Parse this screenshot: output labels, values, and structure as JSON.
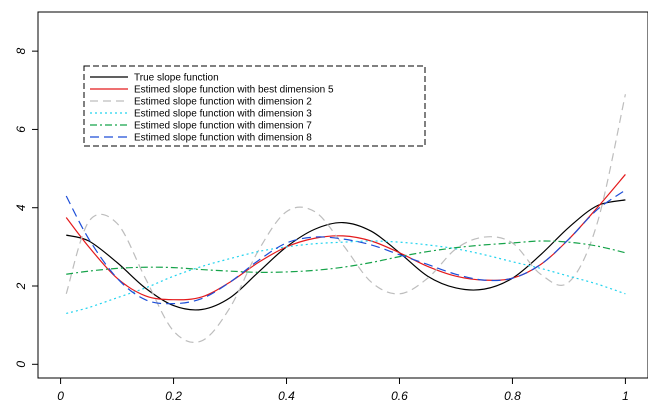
{
  "chart_data": {
    "type": "line",
    "title": "",
    "xlabel": "",
    "ylabel": "",
    "xlim": [
      -0.04,
      1.04
    ],
    "ylim": [
      -0.35,
      9.0
    ],
    "x_ticks": [
      0,
      0.2,
      0.4,
      0.6,
      0.8,
      1
    ],
    "x_tick_labels": [
      "0",
      "0.2",
      "0.4",
      "0.6",
      "0.8",
      "1"
    ],
    "y_ticks": [
      0,
      2,
      4,
      6,
      8
    ],
    "y_tick_labels": [
      "0",
      "2",
      "4",
      "6",
      "8"
    ],
    "grid": false,
    "legend_position": "top-left",
    "x": [
      0.01,
      0.05,
      0.1,
      0.15,
      0.2,
      0.25,
      0.3,
      0.35,
      0.4,
      0.45,
      0.5,
      0.55,
      0.6,
      0.65,
      0.7,
      0.75,
      0.8,
      0.85,
      0.9,
      0.95,
      1.0
    ],
    "series": [
      {
        "name": "True slope function",
        "color": "#000000",
        "dash": "solid",
        "values": [
          3.3,
          3.15,
          2.6,
          1.95,
          1.5,
          1.4,
          1.7,
          2.35,
          3.0,
          3.45,
          3.62,
          3.4,
          2.85,
          2.25,
          1.95,
          1.92,
          2.2,
          2.8,
          3.5,
          4.05,
          4.2
        ]
      },
      {
        "name": "Estimed slope function with best dimension 5",
        "color": "#e41a1c",
        "dash": "solid",
        "values": [
          3.75,
          3.0,
          2.2,
          1.75,
          1.65,
          1.72,
          2.1,
          2.6,
          3.0,
          3.22,
          3.28,
          3.15,
          2.85,
          2.5,
          2.25,
          2.15,
          2.2,
          2.55,
          3.2,
          4.0,
          4.85
        ]
      },
      {
        "name": "Estimed slope function with  dimension 2",
        "color": "#bdbdbd",
        "dash": "8,5",
        "values": [
          1.8,
          3.65,
          3.6,
          2.2,
          0.85,
          0.6,
          1.45,
          2.9,
          3.9,
          3.9,
          3.05,
          2.1,
          1.8,
          2.2,
          2.95,
          3.25,
          3.1,
          2.3,
          2.1,
          3.6,
          6.9
        ]
      },
      {
        "name": "Estimed slope function with  dimension 3",
        "color": "#22d3ee",
        "dash": "2,3",
        "values": [
          1.3,
          1.45,
          1.7,
          1.95,
          2.25,
          2.5,
          2.7,
          2.88,
          3.0,
          3.08,
          3.12,
          3.15,
          3.12,
          3.05,
          2.95,
          2.8,
          2.62,
          2.45,
          2.25,
          2.05,
          1.8
        ]
      },
      {
        "name": "Estimed slope function with  dimension 7",
        "color": "#16a34a",
        "dash": "7,3,2,3",
        "values": [
          2.3,
          2.38,
          2.45,
          2.48,
          2.47,
          2.42,
          2.38,
          2.35,
          2.36,
          2.4,
          2.48,
          2.6,
          2.75,
          2.88,
          2.98,
          3.05,
          3.1,
          3.15,
          3.12,
          3.02,
          2.85
        ]
      },
      {
        "name": "Estimed slope function with  dimension 8",
        "color": "#1d4ed8",
        "dash": "9,5",
        "values": [
          4.3,
          3.2,
          2.2,
          1.65,
          1.55,
          1.68,
          2.1,
          2.65,
          3.1,
          3.25,
          3.2,
          3.05,
          2.8,
          2.55,
          2.3,
          2.15,
          2.2,
          2.55,
          3.2,
          3.95,
          4.45
        ]
      }
    ]
  }
}
